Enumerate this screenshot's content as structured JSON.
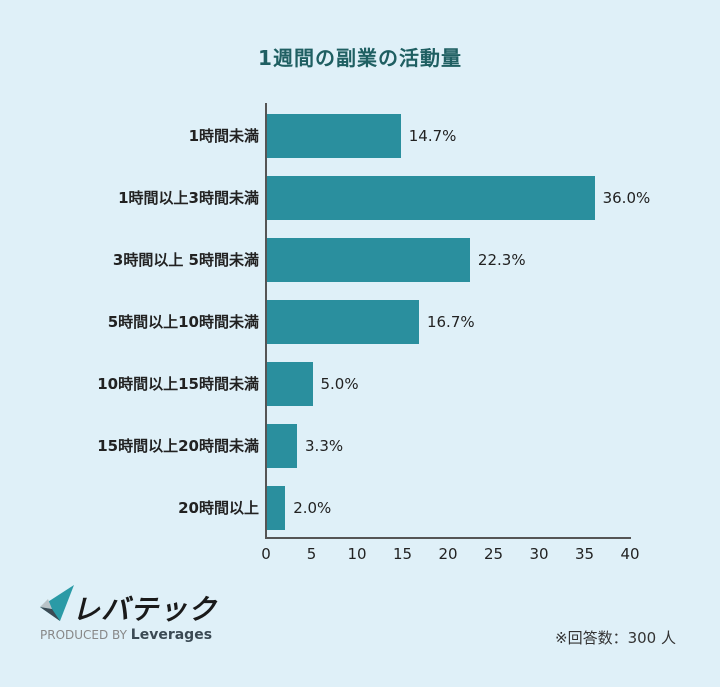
{
  "chart_data": {
    "type": "bar",
    "orientation": "horizontal",
    "title": "1週間の副業の活動量",
    "categories": [
      "1時間未満",
      "1時間以上3時間未満",
      "3時間以上 5時間未満",
      "5時間以上10時間未満",
      "10時間以上15時間未満",
      "15時間以上20時間未満",
      "20時間以上"
    ],
    "values": [
      14.7,
      36.0,
      22.3,
      16.7,
      5.0,
      3.3,
      2.0
    ],
    "value_labels": [
      "14.7%",
      "36.0%",
      "22.3%",
      "16.7%",
      "5.0%",
      "3.3%",
      "2.0%"
    ],
    "xlabel": "",
    "ylabel": "",
    "xlim": [
      0,
      40
    ],
    "xticks": [
      "0",
      "5",
      "10",
      "15",
      "20",
      "25",
      "30",
      "35",
      "40"
    ],
    "grid": false,
    "legend": null,
    "bar_color": "#2a8f9e"
  },
  "branding": {
    "logo_text": "レバテック",
    "produced_by": "PRODUCED BY",
    "company": "Leverages"
  },
  "note": "※回答数：300 人",
  "colors": {
    "background": "#dff0f8",
    "title": "#1f5f62",
    "bar": "#2a8f9e"
  }
}
